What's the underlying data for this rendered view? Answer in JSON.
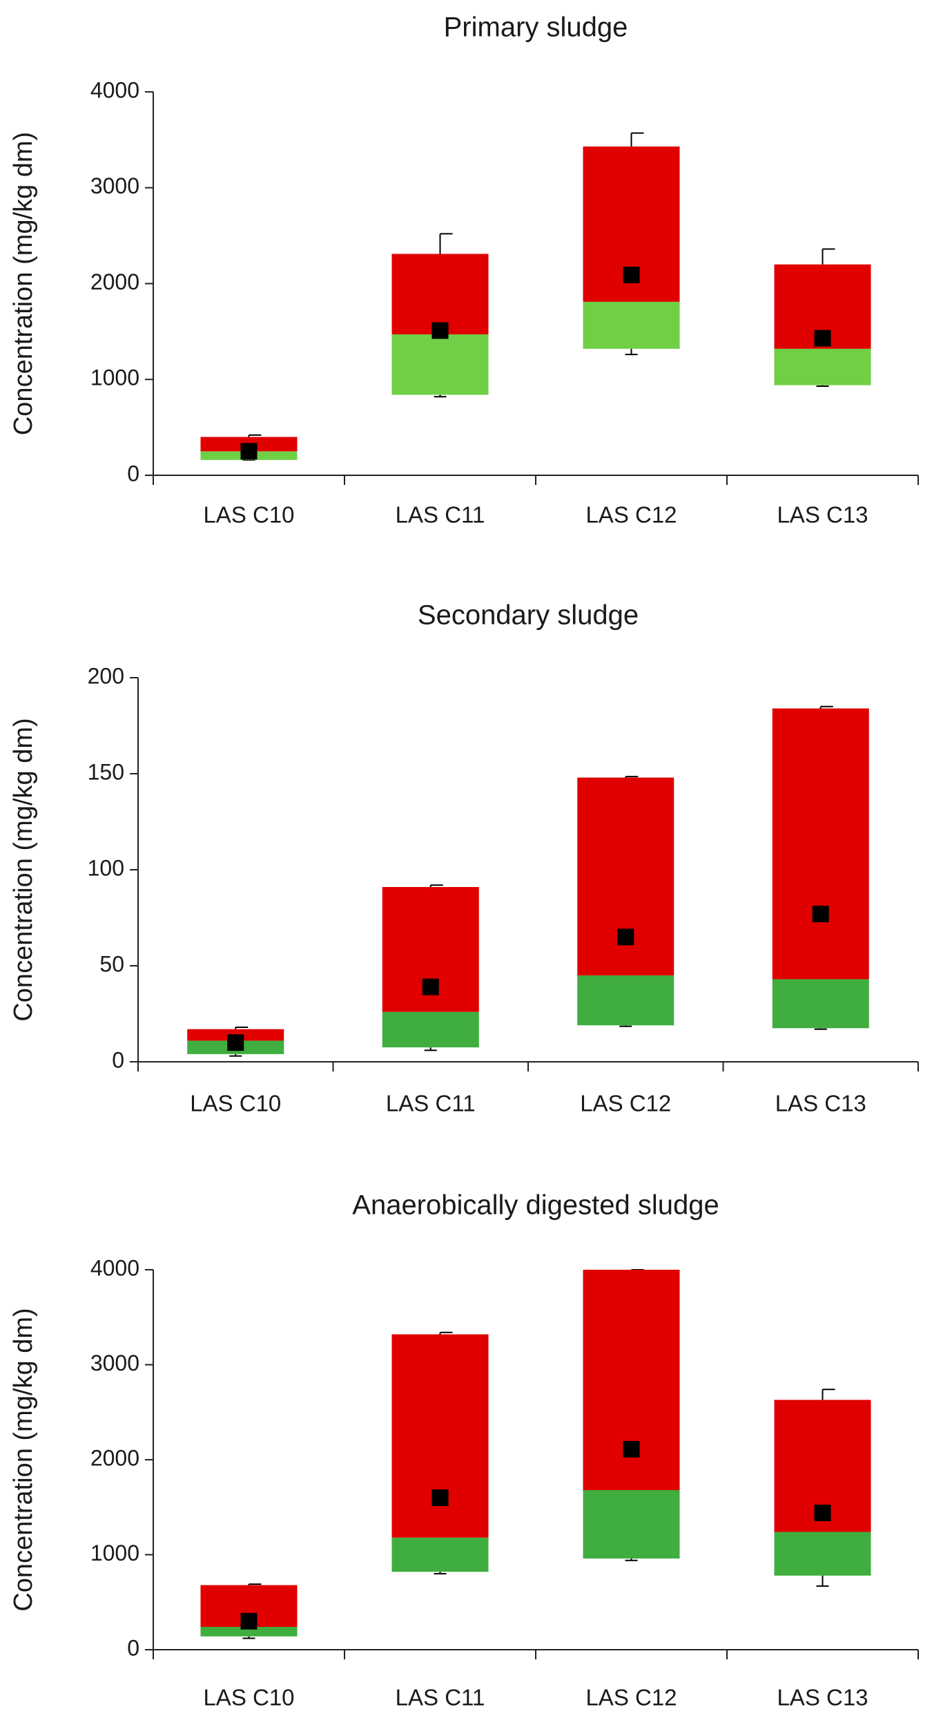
{
  "chart_data": [
    {
      "type": "box",
      "title": "Primary sludge",
      "ylabel": "Concentration (mg/kg dm)",
      "xlabel": "",
      "ylim": [
        0,
        4000
      ],
      "yticks": [
        0,
        1000,
        2000,
        3000,
        4000
      ],
      "categories": [
        "LAS C10",
        "LAS C11",
        "LAS C12",
        "LAS C13"
      ],
      "boxes": [
        {
          "whisker_low": 160,
          "q1": 160,
          "median": 250,
          "q3": 400,
          "whisker_high": 420,
          "mean": 250
        },
        {
          "whisker_low": 820,
          "q1": 840,
          "median": 1470,
          "q3": 2310,
          "whisker_high": 2520,
          "mean": 1510
        },
        {
          "whisker_low": 1260,
          "q1": 1320,
          "median": 1810,
          "q3": 3430,
          "whisker_high": 3570,
          "mean": 2090
        },
        {
          "whisker_low": 930,
          "q1": 940,
          "median": 1320,
          "q3": 2200,
          "whisker_high": 2360,
          "mean": 1430
        }
      ],
      "colors": {
        "lower": "#6fcf45",
        "upper": "#e00000",
        "mean": "#000000"
      },
      "grid": false
    },
    {
      "type": "box",
      "title": "Secondary sludge",
      "ylabel": "Concentration (mg/kg dm)",
      "xlabel": "",
      "ylim": [
        0,
        200
      ],
      "yticks": [
        0,
        50,
        100,
        150,
        200
      ],
      "categories": [
        "LAS C10",
        "LAS C11",
        "LAS C12",
        "LAS C13"
      ],
      "boxes": [
        {
          "whisker_low": 3,
          "q1": 4,
          "median": 11,
          "q3": 17,
          "whisker_high": 18,
          "mean": 10
        },
        {
          "whisker_low": 6,
          "q1": 7.5,
          "median": 26,
          "q3": 91,
          "whisker_high": 92,
          "mean": 39
        },
        {
          "whisker_low": 18.5,
          "q1": 19,
          "median": 45,
          "q3": 148,
          "whisker_high": 148.5,
          "mean": 65
        },
        {
          "whisker_low": 17,
          "q1": 17.5,
          "median": 43,
          "q3": 184,
          "whisker_high": 185,
          "mean": 77
        }
      ],
      "colors": {
        "lower": "#3fae3f",
        "upper": "#e00000",
        "mean": "#000000"
      },
      "grid": false
    },
    {
      "type": "box",
      "title": "Anaerobically digested sludge",
      "ylabel": "Concentration (mg/kg dm)",
      "xlabel": "",
      "ylim": [
        0,
        4000
      ],
      "yticks": [
        0,
        1000,
        2000,
        3000,
        4000
      ],
      "categories": [
        "LAS C10",
        "LAS C11",
        "LAS C12",
        "LAS C13"
      ],
      "boxes": [
        {
          "whisker_low": 120,
          "q1": 140,
          "median": 240,
          "q3": 680,
          "whisker_high": 690,
          "mean": 300
        },
        {
          "whisker_low": 800,
          "q1": 820,
          "median": 1180,
          "q3": 3320,
          "whisker_high": 3340,
          "mean": 1600
        },
        {
          "whisker_low": 940,
          "q1": 960,
          "median": 1680,
          "q3": 4000,
          "whisker_high": 4000,
          "mean": 2110
        },
        {
          "whisker_low": 670,
          "q1": 780,
          "median": 1240,
          "q3": 2630,
          "whisker_high": 2740,
          "mean": 1440
        }
      ],
      "colors": {
        "lower": "#3fae3f",
        "upper": "#e00000",
        "mean": "#000000"
      },
      "grid": false
    }
  ]
}
